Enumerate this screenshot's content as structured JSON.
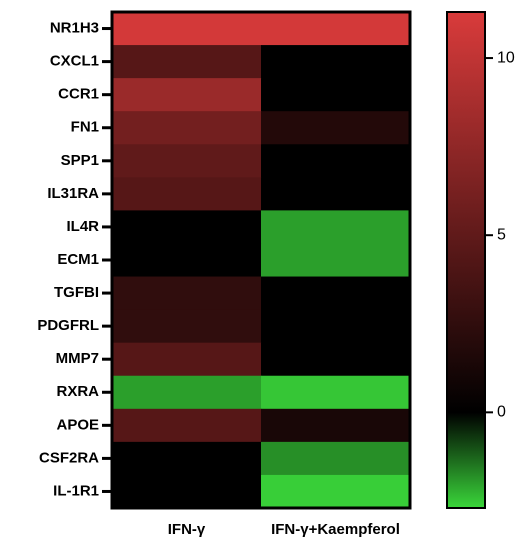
{
  "chart_data": {
    "type": "heatmap",
    "rows": [
      "NR1H3",
      "CXCL1",
      "CCR1",
      "FN1",
      "SPP1",
      "IL31RA",
      "IL4R",
      "ECM1",
      "TGFBI",
      "PDGFRL",
      "MMP7",
      "RXRA",
      "APOE",
      "CSF2RA",
      "IL-1R1"
    ],
    "columns": [
      "IFN-γ",
      "IFN-γ+Kaempferol"
    ],
    "values": [
      [
        11,
        11
      ],
      [
        4.5,
        0
      ],
      [
        8,
        0
      ],
      [
        6,
        1.8
      ],
      [
        5,
        0
      ],
      [
        4.5,
        0
      ],
      [
        0,
        -2
      ],
      [
        0,
        -2
      ],
      [
        2.5,
        0
      ],
      [
        2.5,
        0
      ],
      [
        4.5,
        0
      ],
      [
        -2,
        -2.5
      ],
      [
        4.5,
        1.3
      ],
      [
        0,
        -1.8
      ],
      [
        0,
        -2.6
      ]
    ],
    "colors": {
      "low": "#3ad63a",
      "mid": "#000000",
      "high": "#d93b3b"
    },
    "clim": [
      -2.7,
      11.3
    ],
    "cticks": [
      0,
      5,
      10
    ]
  }
}
